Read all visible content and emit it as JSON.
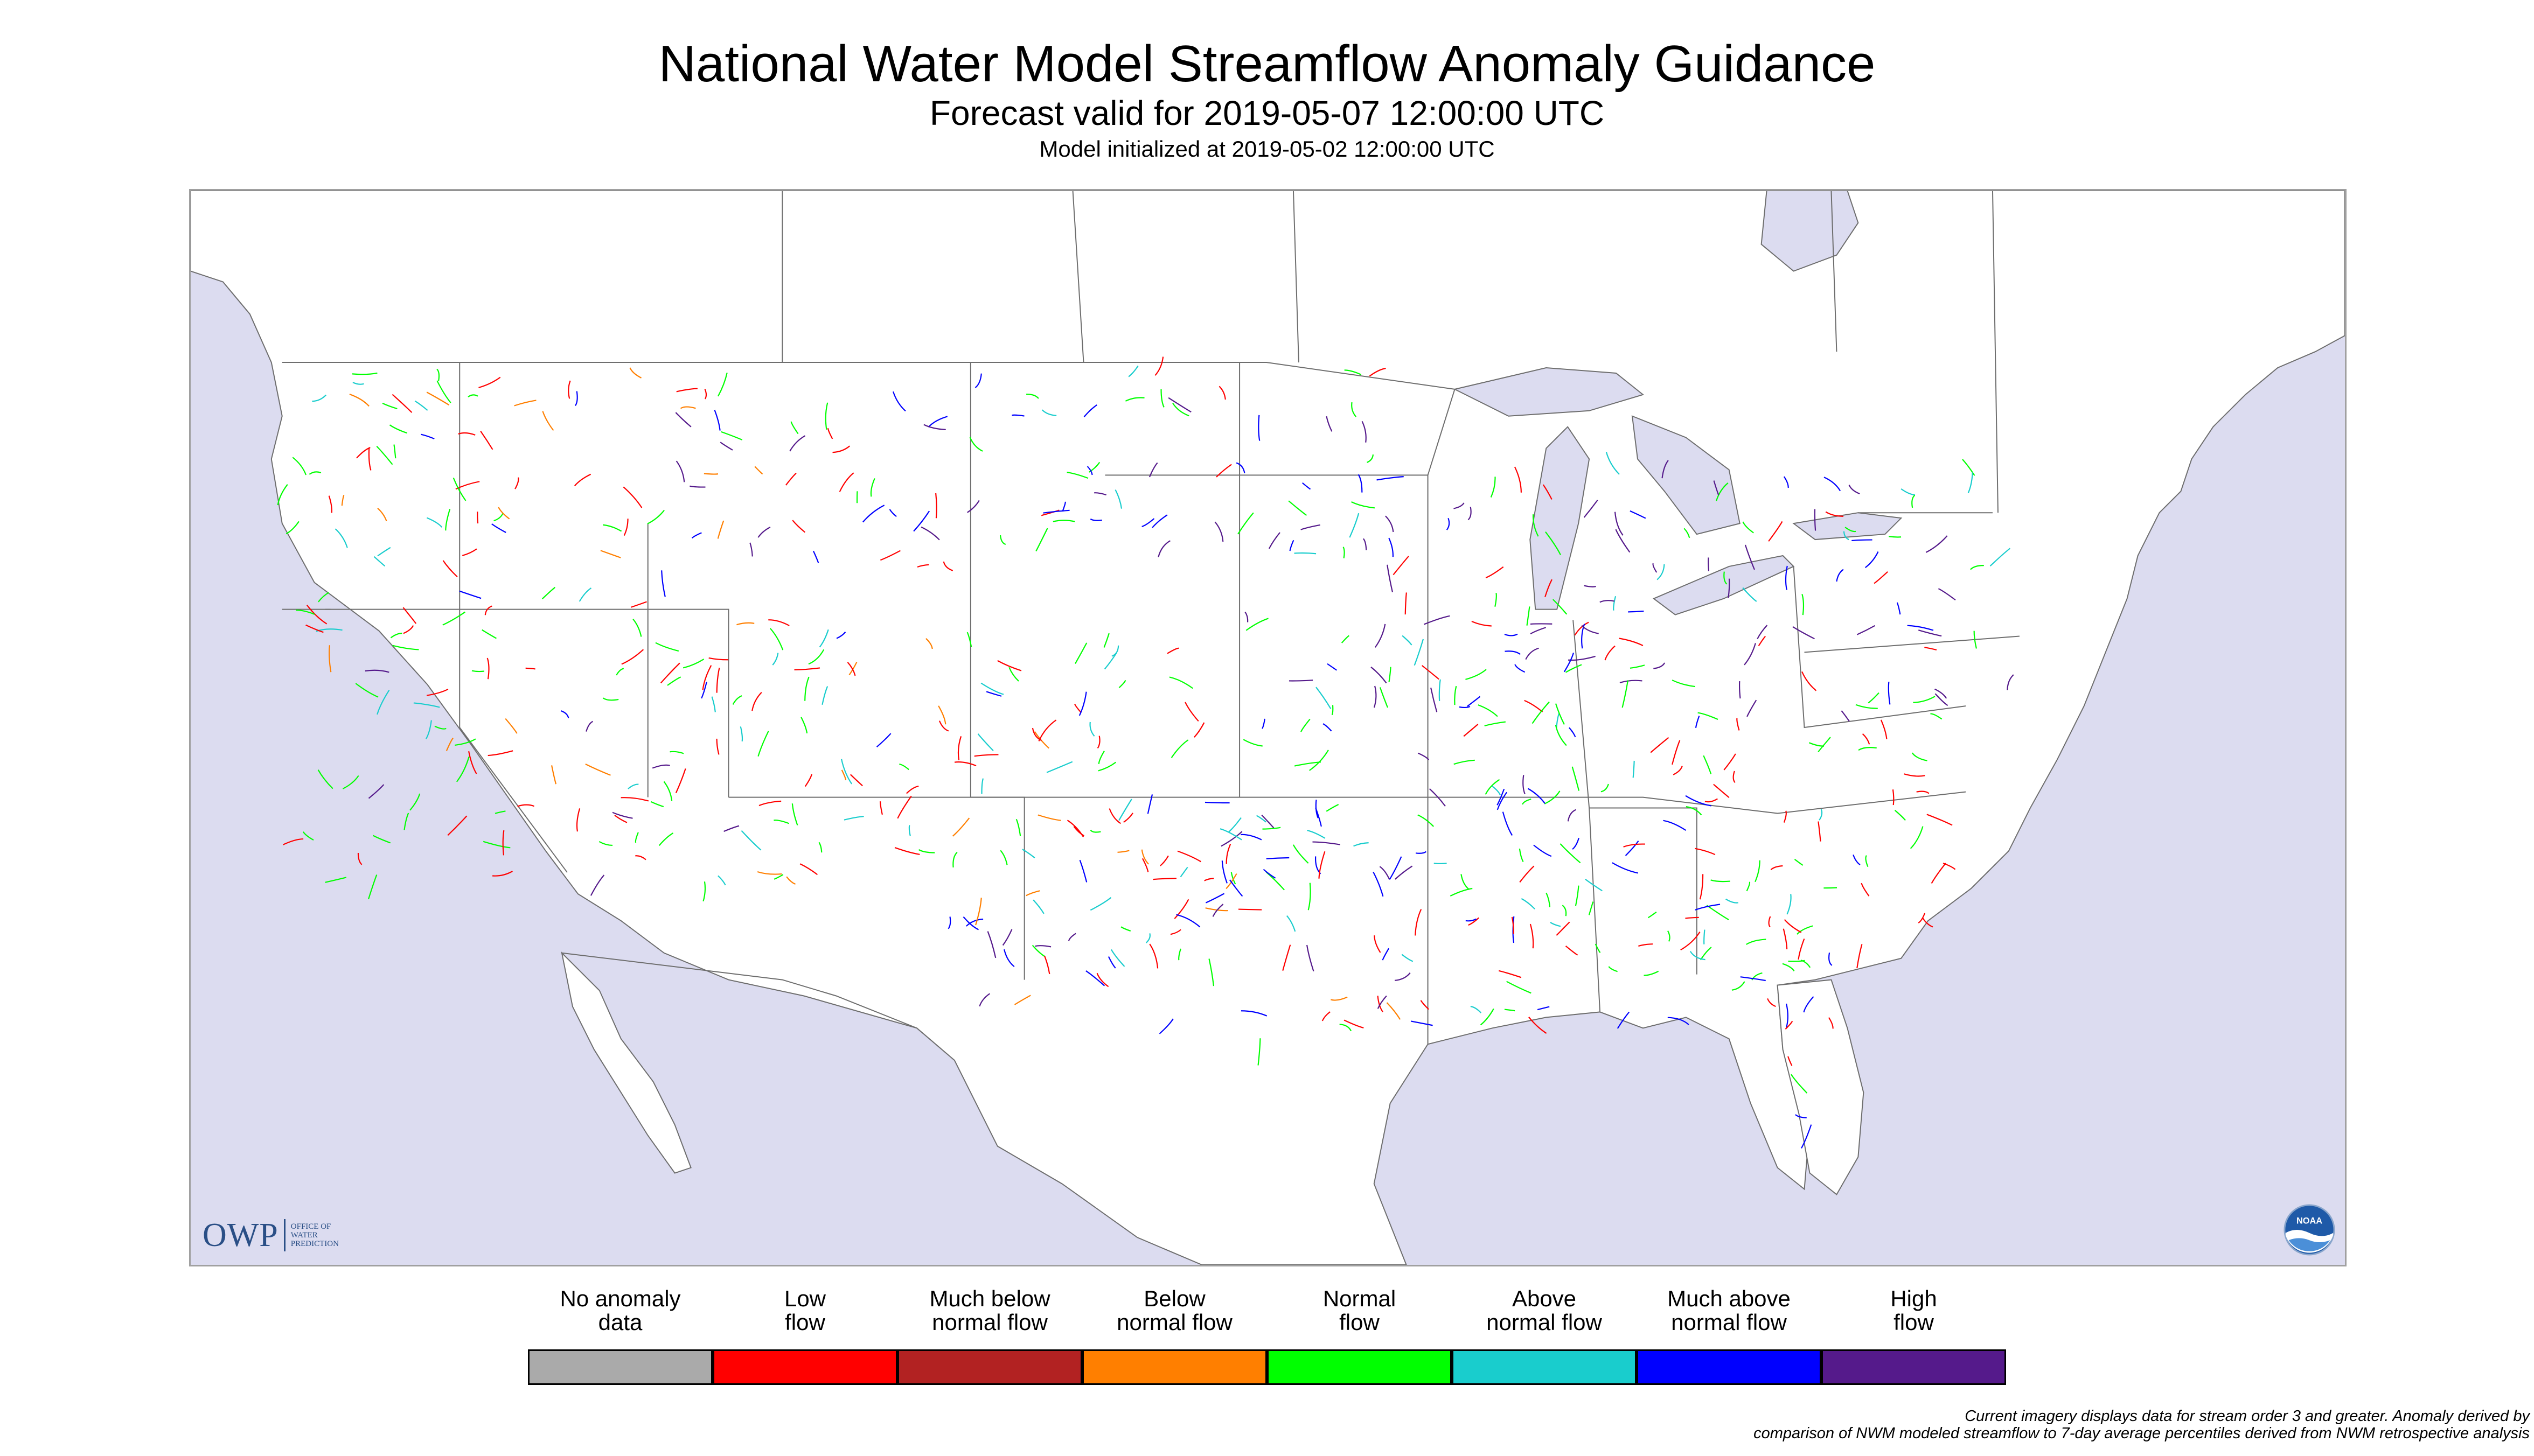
{
  "title": {
    "main": "National Water Model Streamflow Anomaly Guidance",
    "forecast_valid": "Forecast valid for 2019-05-07 12:00:00 UTC",
    "model_initialized": "Model initialized at 2019-05-02 12:00:00 UTC"
  },
  "map": {
    "ocean_color": "#dcdcf0",
    "land_color": "#ffffff",
    "boundary_color": "#6e6e6e",
    "region": "Contiguous United States"
  },
  "legend": {
    "items": [
      {
        "label": "No anomaly\ndata",
        "color": "#aaaaaa"
      },
      {
        "label": "Low\nflow",
        "color": "#ff0000"
      },
      {
        "label": "Much below\nnormal flow",
        "color": "#b22222"
      },
      {
        "label": "Below\nnormal flow",
        "color": "#ff7f00"
      },
      {
        "label": "Normal\nflow",
        "color": "#00ff00"
      },
      {
        "label": "Above\nnormal flow",
        "color": "#19cdcd"
      },
      {
        "label": "Much above\nnormal flow",
        "color": "#0000ff"
      },
      {
        "label": "High\nflow",
        "color": "#551a8b"
      }
    ]
  },
  "logos": {
    "owp_letters": "OWP",
    "owp_line1": "OFFICE OF",
    "owp_line2": "WATER",
    "owp_line3": "PREDICTION",
    "noaa_text": "NOAA"
  },
  "footnote": {
    "line1": "Current imagery displays data for stream order 3 and greater. Anomaly derived by",
    "line2": "comparison of NWM modeled streamflow to 7-day average percentiles derived from NWM retrospective analysis"
  }
}
